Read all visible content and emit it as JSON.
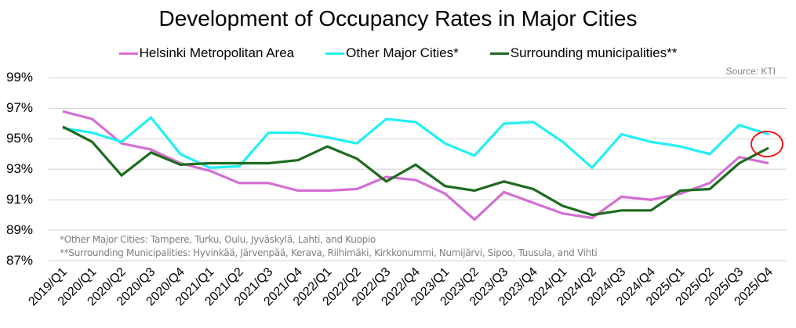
{
  "chart_data": {
    "type": "line",
    "title": "Development of Occupancy Rates in Major Cities",
    "source": "Source: KTI",
    "xlabel": "",
    "ylabel": "",
    "ylim": [
      87,
      99
    ],
    "yticks": [
      "99%",
      "97%",
      "95%",
      "93%",
      "91%",
      "89%",
      "87%"
    ],
    "ytick_values": [
      99,
      97,
      95,
      93,
      91,
      89,
      87
    ],
    "grid": true,
    "legend_position": "top-center",
    "categories": [
      "2019/Q1",
      "2020/Q1",
      "2020/Q2",
      "2020/Q3",
      "2020/Q4",
      "2021/Q1",
      "2021/Q2",
      "2021/Q3",
      "2021/Q4",
      "2022/Q1",
      "2022/Q2",
      "2022/Q3",
      "2022/Q4",
      "2023/Q1",
      "2023/Q2",
      "2023/Q3",
      "2023/Q4",
      "2024/Q1",
      "2024/Q2",
      "2024/Q3",
      "2024/Q4",
      "2025/Q1",
      "2025/Q2",
      "2025/Q3",
      "2025/Q4"
    ],
    "series": [
      {
        "name": "Helsinki Metropolitan Area",
        "color": "#d36fd3",
        "values": [
          96.8,
          96.3,
          94.7,
          94.3,
          93.4,
          92.9,
          92.1,
          92.1,
          91.6,
          91.6,
          91.7,
          92.5,
          92.3,
          91.4,
          89.7,
          91.5,
          90.8,
          90.1,
          89.8,
          91.2,
          91.0,
          91.4,
          92.1,
          93.8,
          93.4
        ]
      },
      {
        "name": "Other Major Cities*",
        "color": "#22f0f4",
        "values": [
          95.7,
          95.4,
          94.8,
          96.4,
          94.0,
          93.1,
          93.2,
          95.4,
          95.4,
          95.1,
          94.7,
          96.3,
          96.1,
          94.7,
          93.9,
          96.0,
          96.1,
          94.8,
          93.1,
          95.3,
          94.8,
          94.5,
          94.0,
          95.9,
          95.3
        ]
      },
      {
        "name": "Surrounding municipalities**",
        "color": "#1e6b1e",
        "values": [
          95.8,
          94.8,
          92.6,
          94.1,
          93.3,
          93.4,
          93.4,
          93.4,
          93.6,
          94.5,
          93.7,
          92.2,
          93.3,
          91.9,
          91.6,
          92.2,
          91.7,
          90.6,
          90.0,
          90.3,
          90.3,
          91.6,
          91.7,
          93.4,
          94.4
        ]
      }
    ],
    "annotations": [
      {
        "type": "circle",
        "color": "#ff0000",
        "target_series": "Surrounding municipalities**",
        "target_category": "2025/Q4"
      }
    ],
    "footnotes": [
      "*Other Major Cities: Tampere, Turku, Oulu, Jyväskylä, Lahti, and Kuopio",
      "**Surrounding Municipalities: Hyvinkää, Järvenpää, Kerava, Riihimäki, Kirkkonummi, Numijärvi, Sipoo, Tuusula, and Vihti"
    ]
  }
}
